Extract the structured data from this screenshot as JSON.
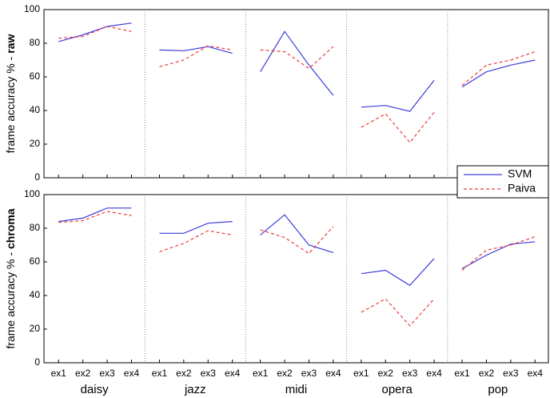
{
  "chart_data": [
    {
      "type": "line",
      "ylabel": "frame accuracy % -",
      "ylabel_emphasis": "raw",
      "ylim": [
        0,
        100
      ],
      "yticks": [
        0,
        20,
        40,
        60,
        80,
        100
      ],
      "series": [
        {
          "color": "#3b3bdc",
          "linestyle": "solid",
          "values": [
            81,
            85,
            90,
            92,
            76,
            75.5,
            78,
            74,
            63,
            87,
            67,
            49,
            42,
            43,
            39.5,
            58,
            54,
            63,
            67,
            70
          ]
        },
        {
          "color": "#f03c3c",
          "linestyle": "dashed",
          "values": [
            83,
            84,
            90,
            87,
            66,
            70,
            78.5,
            76,
            76,
            75,
            65,
            78,
            30,
            38,
            21,
            39,
            55,
            67,
            70,
            75
          ]
        }
      ]
    },
    {
      "type": "line",
      "ylabel": "frame accuracy % -",
      "ylabel_emphasis": "chroma",
      "ylim": [
        0,
        100
      ],
      "yticks": [
        0,
        20,
        40,
        60,
        80,
        100
      ],
      "categories": [
        "ex1",
        "ex2",
        "ex3",
        "ex4",
        "ex1",
        "ex2",
        "ex3",
        "ex4",
        "ex1",
        "ex2",
        "ex3",
        "ex4",
        "ex1",
        "ex2",
        "ex3",
        "ex4",
        "ex1",
        "ex2",
        "ex3",
        "ex4"
      ],
      "groups": [
        "daisy",
        "jazz",
        "midi",
        "opera",
        "pop"
      ],
      "legend": "upper right",
      "series": [
        {
          "name": "SVM",
          "color": "#3b3bdc",
          "linestyle": "solid",
          "values": [
            84,
            86,
            92,
            92,
            77,
            77,
            83,
            84,
            76,
            88,
            70,
            65.5,
            53,
            55,
            46,
            62,
            56,
            64,
            70.5,
            72
          ]
        },
        {
          "name": "Paiva",
          "color": "#f03c3c",
          "linestyle": "dashed",
          "values": [
            83.5,
            84.5,
            90,
            87.5,
            66,
            71,
            78.5,
            76,
            79,
            74.5,
            65,
            81,
            30,
            38,
            22,
            38,
            55,
            67,
            70,
            75
          ]
        }
      ]
    }
  ]
}
